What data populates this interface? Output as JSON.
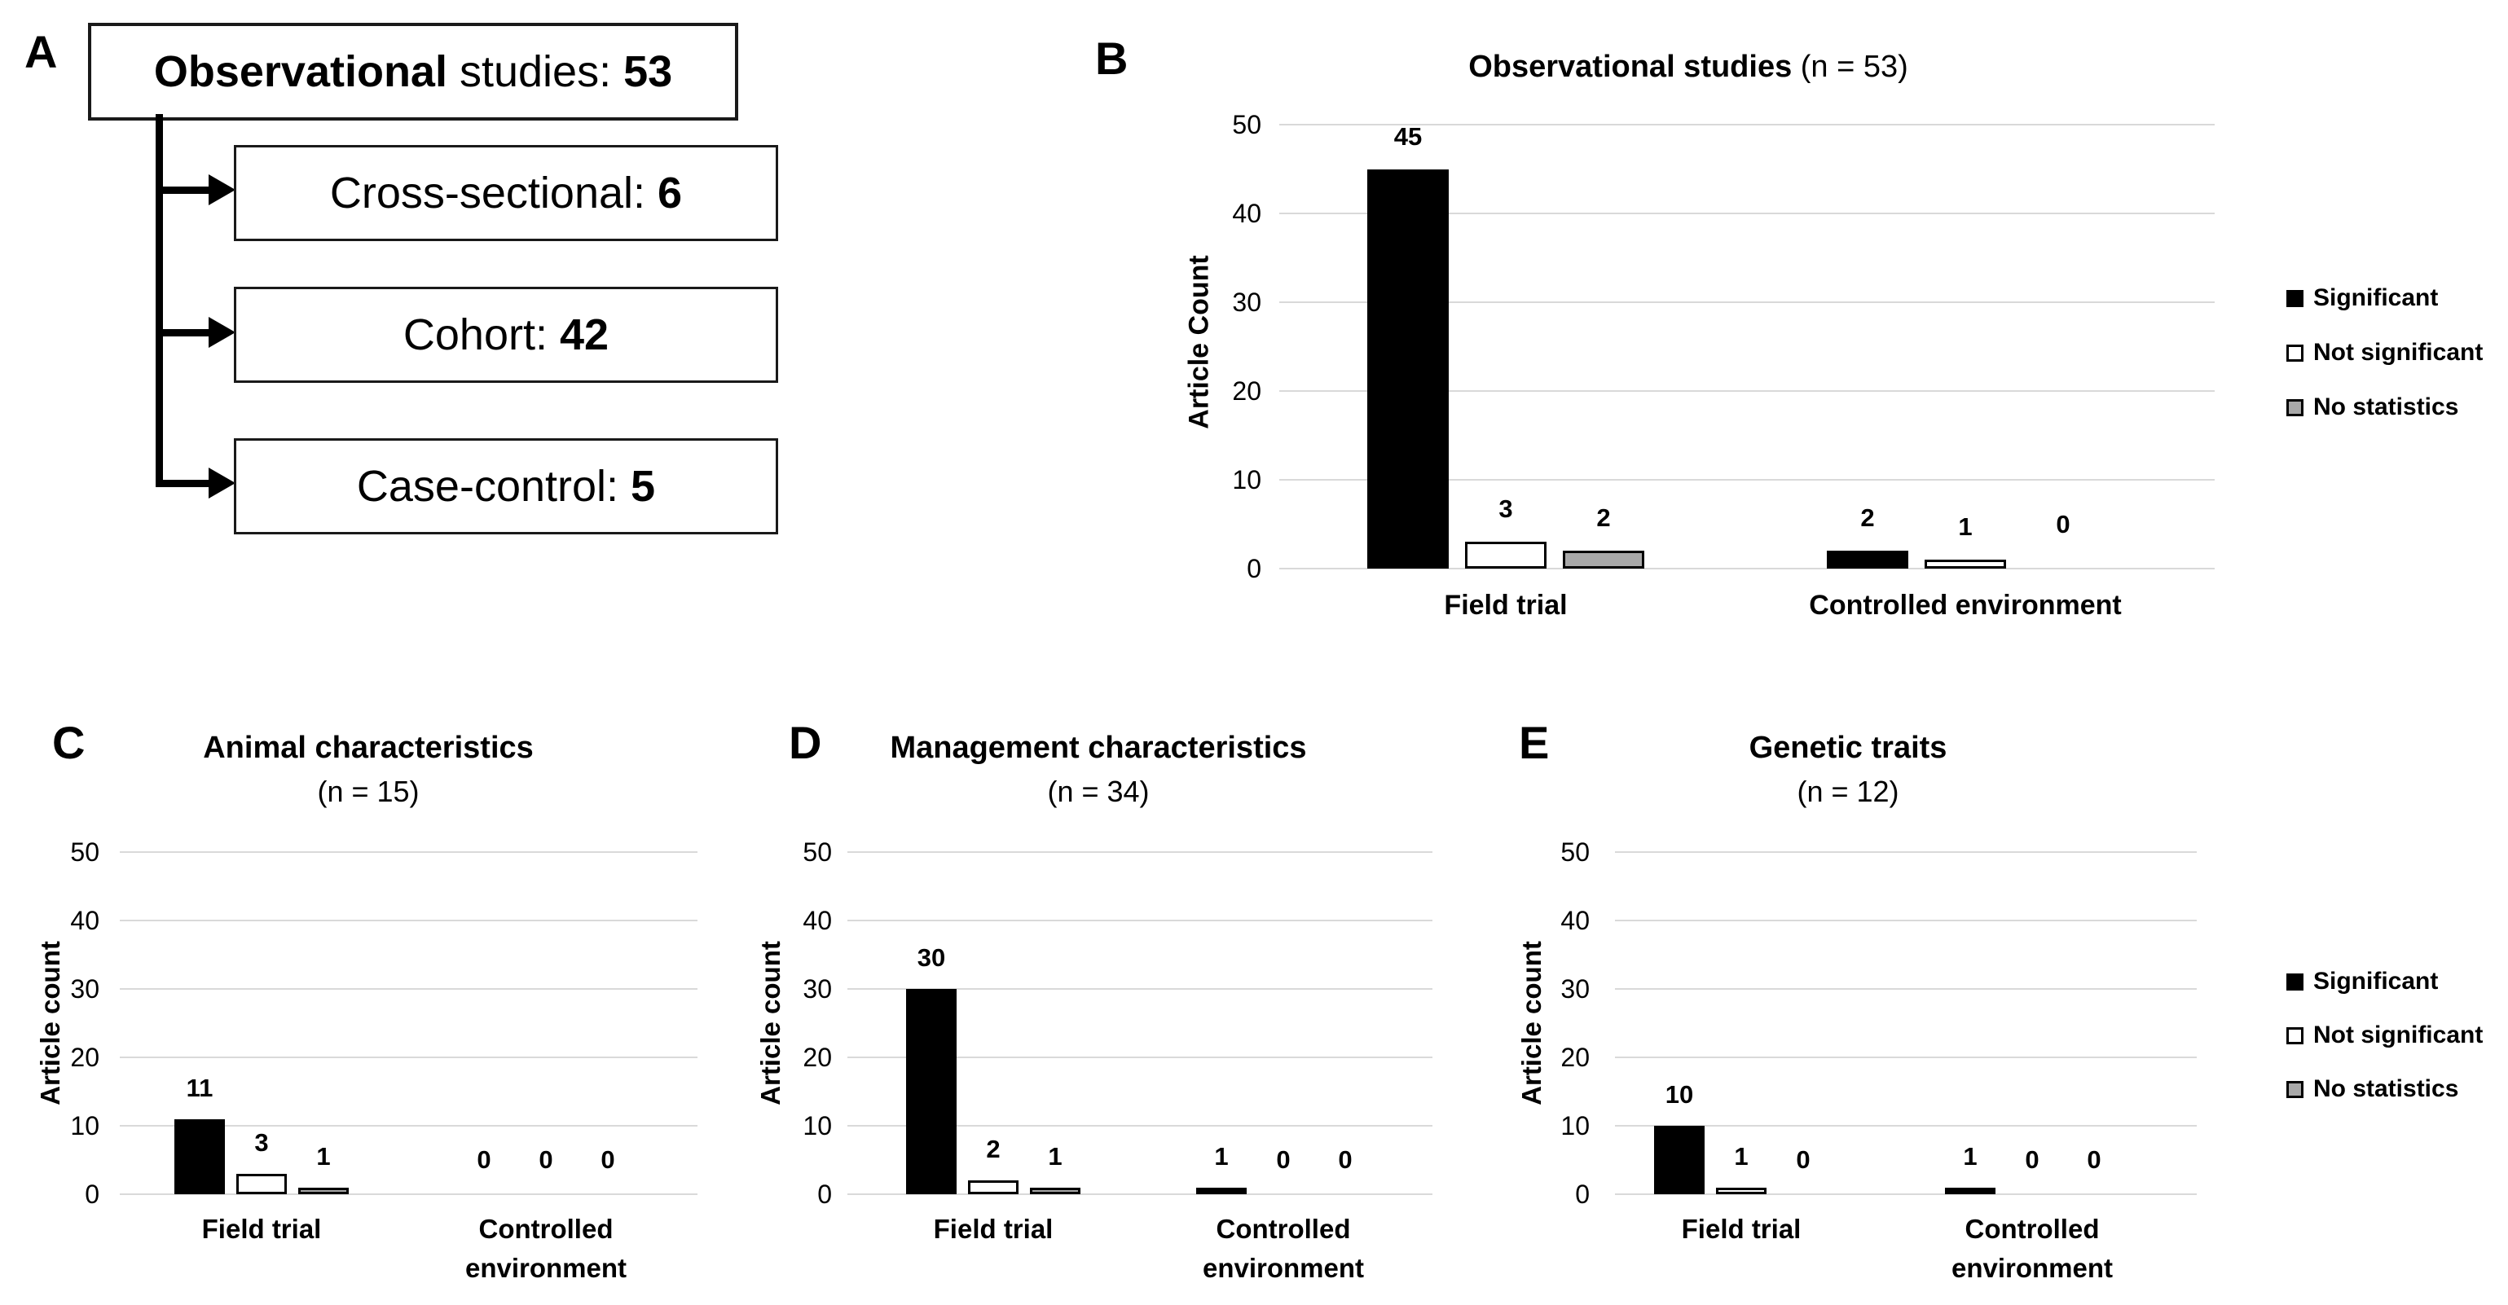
{
  "figure": {
    "background": "#ffffff"
  },
  "flowchart": {
    "panel_letter": "A",
    "root": {
      "bold": "Observational",
      "rest": " studies: ",
      "count": "53"
    },
    "children": [
      {
        "text": "Cross-sectional: ",
        "count": "6"
      },
      {
        "text": "Cohort: ",
        "count": "42"
      },
      {
        "text": "Case-control: ",
        "count": "5"
      }
    ]
  },
  "legend": {
    "items": [
      {
        "label": "Significant",
        "fill": "#000000"
      },
      {
        "label": "Not significant",
        "fill": "#ffffff"
      },
      {
        "label": "No statistics",
        "fill": "#a8a8a8"
      }
    ]
  },
  "colors": {
    "bar_black": "#000000",
    "bar_white": "#ffffff",
    "bar_gray": "#a8a8a8",
    "gridline": "#d9d9d9",
    "border": "#000000"
  },
  "chart_data": [
    {
      "id": "b",
      "type": "bar",
      "panel_letter": "B",
      "title": "Observational studies",
      "title_suffix": "(n = 53)",
      "ylabel": "Article Count",
      "ylim": [
        0,
        50
      ],
      "yticks": [
        0,
        10,
        20,
        30,
        40,
        50
      ],
      "grid": true,
      "legend_position": "right",
      "categories": [
        "Field trial",
        "Controlled environment"
      ],
      "series": [
        {
          "name": "Significant",
          "color": "#000000",
          "values": [
            45,
            2
          ]
        },
        {
          "name": "Not significant",
          "color": "#ffffff",
          "values": [
            3,
            1
          ]
        },
        {
          "name": "No statistics",
          "color": "#a8a8a8",
          "values": [
            2,
            0
          ]
        }
      ]
    },
    {
      "id": "c",
      "type": "bar",
      "panel_letter": "C",
      "title": "Animal characteristics",
      "title_suffix": "(n = 15)",
      "ylabel": "Article count",
      "ylim": [
        0,
        50
      ],
      "yticks": [
        0,
        10,
        20,
        30,
        40,
        50
      ],
      "grid": true,
      "legend_position": "none",
      "categories": [
        "Field trial",
        "Controlled environment"
      ],
      "series": [
        {
          "name": "Significant",
          "color": "#000000",
          "values": [
            11,
            0
          ]
        },
        {
          "name": "Not significant",
          "color": "#ffffff",
          "values": [
            3,
            0
          ]
        },
        {
          "name": "No statistics",
          "color": "#a8a8a8",
          "values": [
            1,
            0
          ]
        }
      ]
    },
    {
      "id": "d",
      "type": "bar",
      "panel_letter": "D",
      "title": "Management characteristics",
      "title_suffix": "(n = 34)",
      "ylabel": "Article count",
      "ylim": [
        0,
        50
      ],
      "yticks": [
        0,
        10,
        20,
        30,
        40,
        50
      ],
      "grid": true,
      "legend_position": "none",
      "categories": [
        "Field trial",
        "Controlled environment"
      ],
      "series": [
        {
          "name": "Significant",
          "color": "#000000",
          "values": [
            30,
            1
          ]
        },
        {
          "name": "Not significant",
          "color": "#ffffff",
          "values": [
            2,
            0
          ]
        },
        {
          "name": "No statistics",
          "color": "#a8a8a8",
          "values": [
            1,
            0
          ]
        }
      ]
    },
    {
      "id": "e",
      "type": "bar",
      "panel_letter": "E",
      "title": "Genetic traits",
      "title_suffix": "(n = 12)",
      "ylabel": "Article count",
      "ylim": [
        0,
        50
      ],
      "yticks": [
        0,
        10,
        20,
        30,
        40,
        50
      ],
      "grid": true,
      "legend_position": "right",
      "categories": [
        "Field trial",
        "Controlled environment"
      ],
      "series": [
        {
          "name": "Significant",
          "color": "#000000",
          "values": [
            10,
            1
          ]
        },
        {
          "name": "Not significant",
          "color": "#ffffff",
          "values": [
            1,
            0
          ]
        },
        {
          "name": "No statistics",
          "color": "#a8a8a8",
          "values": [
            0,
            0
          ]
        }
      ]
    }
  ]
}
